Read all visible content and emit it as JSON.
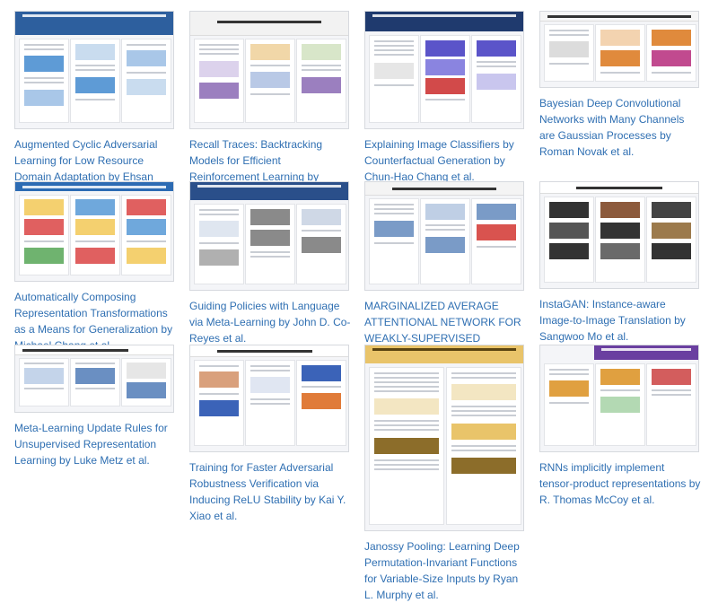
{
  "cards": [
    {
      "caption": "Augmented Cyclic Adversarial Learning for Low Resource Domain Adaptation by Ehsan Hosseini-Asl et al.",
      "accent": "#2d5f9e",
      "fig": "#5e9bd6"
    },
    {
      "caption": "Recall Traces: Backtracking Models for Efficient Reinforcement Learning by Anirudh Goyal et al.",
      "accent": "#e8e8e8",
      "fig": "#9b7fbf"
    },
    {
      "caption": "Explaining Image Classifiers by Counterfactual Generation by Chun-Hao Chang et al.",
      "accent": "#1f3a6e",
      "fig": "#5b54c9"
    },
    {
      "caption": "Bayesian Deep Convolutional Networks with Many Channels are Gaussian Processes by Roman Novak et al.",
      "accent": "#eeeeee",
      "fig": "#e08a3c"
    },
    {
      "caption": "Automatically Composing Representation Transformations as a Means for Generalization by Michael Chang et al.",
      "accent": "#2c6bb3",
      "fig": "#e06060"
    },
    {
      "caption": "Guiding Policies with Language via Meta-Learning by John D. Co-Reyes et al.",
      "accent": "#2a4f8a",
      "fig": "#8a8a8a"
    },
    {
      "caption": "MARGINALIZED AVERAGE ATTENTIONAL NETWORK FOR WEAKLY-SUPERVISED LEARNING by Yuan Yuan et al.",
      "accent": "#eeeeee",
      "fig": "#7a9bc7"
    },
    {
      "caption": "InstaGAN: Instance-aware Image-to-Image Translation by Sangwoo Mo et al.",
      "accent": "#eeeeee",
      "fig": "#333333"
    },
    {
      "caption": "Meta-Learning Update Rules for Unsupervised Representation Learning by Luke Metz et al.",
      "accent": "#eeeeee",
      "fig": "#6a8fc2"
    },
    {
      "caption": "Training for Faster Adversarial Robustness Verification via Inducing ReLU Stability by Kai Y. Xiao et al.",
      "accent": "#eeeeee",
      "fig": "#3b63b8"
    },
    {
      "caption": "Janossy Pooling: Learning Deep Permutation-Invariant Functions for Variable-Size Inputs by Ryan L. Murphy et al.",
      "accent": "#e9c46a",
      "fig": "#8c6d2a"
    },
    {
      "caption": "RNNs implicitly implement tensor-product representations by R. Thomas McCoy et al.",
      "accent": "#6a3fa0",
      "fig": "#e0a040"
    }
  ]
}
